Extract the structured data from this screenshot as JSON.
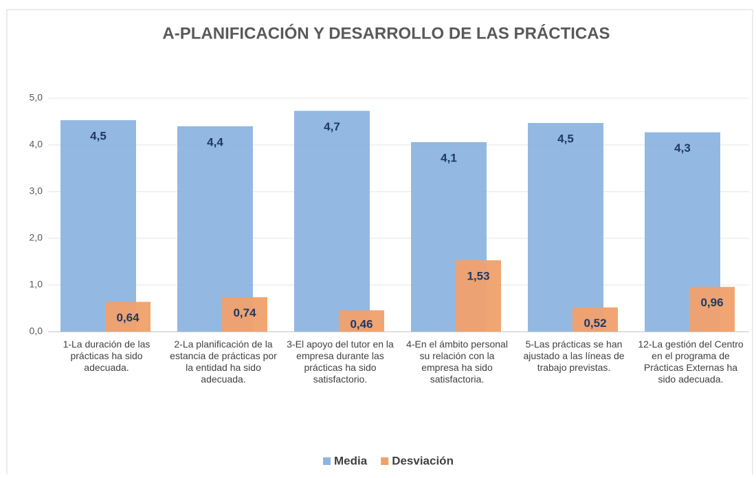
{
  "chart_data": {
    "type": "bar",
    "title": "A-PLANIFICACIÓN Y DESARROLLO DE LAS PRÁCTICAS",
    "categories": [
      "1-La duración de las prácticas ha sido adecuada.",
      "2-La planificación de la estancia de prácticas por la entidad ha sido adecuada.",
      "3-El apoyo del tutor en la empresa durante las prácticas ha sido satisfactorio.",
      "4-En el ámbito personal su relación con la empresa ha sido satisfactoria.",
      "5-Las prácticas se han ajustado a las líneas de trabajo previstas.",
      "12-La gestión del Centro en el programa de Prácticas Externas ha sido adecuada."
    ],
    "series": [
      {
        "name": "Media",
        "color": "#8db5e0",
        "values": [
          4.53,
          4.4,
          4.73,
          4.06,
          4.47,
          4.27
        ],
        "value_labels": [
          "4,5",
          "4,4",
          "4,7",
          "4,1",
          "4,5",
          "4,3"
        ]
      },
      {
        "name": "Desviación",
        "color": "#f0a06b",
        "values": [
          0.64,
          0.74,
          0.46,
          1.53,
          0.52,
          0.96
        ],
        "value_labels": [
          "0,64",
          "0,74",
          "0,46",
          "1,53",
          "0,52",
          "0,96"
        ]
      }
    ],
    "ylim": [
      0,
      5
    ],
    "yticks": [
      {
        "value": 0,
        "label": "0,0"
      },
      {
        "value": 1,
        "label": "1,0"
      },
      {
        "value": 2,
        "label": "2,0"
      },
      {
        "value": 3,
        "label": "3,0"
      },
      {
        "value": 4,
        "label": "4,0"
      },
      {
        "value": 5,
        "label": "5,0"
      }
    ],
    "grid": true
  }
}
